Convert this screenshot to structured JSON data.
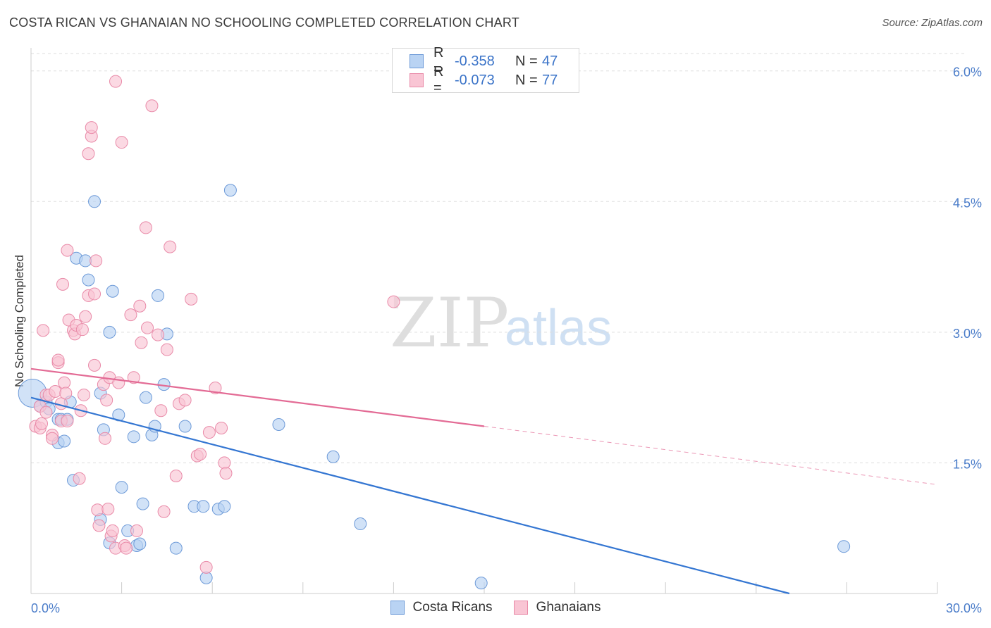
{
  "title": "COSTA RICAN VS GHANAIAN NO SCHOOLING COMPLETED CORRELATION CHART",
  "source": "Source: ZipAtlas.com",
  "watermark": {
    "zip": "ZIP",
    "atlas": "atlas"
  },
  "legend": {
    "rows": [
      {
        "r_label": "R =",
        "r_value": "-0.358",
        "n_label": "N =",
        "n_value": "47"
      },
      {
        "r_label": "R =",
        "r_value": "-0.073",
        "n_label": "N =",
        "n_value": "77"
      }
    ]
  },
  "colors": {
    "blue_fill": "#b9d3f3",
    "blue_stroke": "#6d9ad8",
    "blue_line": "#3476d2",
    "pink_fill": "#f9c5d4",
    "pink_stroke": "#e98aa8",
    "pink_line": "#e36b95",
    "axis_text": "#4a7cc9",
    "grid": "#dddddd"
  },
  "chart_data": {
    "type": "scatter",
    "title": "COSTA RICAN VS GHANAIAN NO SCHOOLING COMPLETED CORRELATION CHART",
    "xlabel": "",
    "ylabel": "No Schooling Completed",
    "xlim": [
      0,
      30
    ],
    "ylim": [
      0,
      6.2
    ],
    "x_tick_labels": [
      "0.0%",
      "30.0%"
    ],
    "y_ticks": [
      1.5,
      3.0,
      4.5,
      6.0
    ],
    "y_tick_labels": [
      "1.5%",
      "3.0%",
      "4.5%",
      "6.0%"
    ],
    "grid": true,
    "legend_position": "bottom-center",
    "series": [
      {
        "name": "Costa Ricans",
        "color": "blue",
        "trend": {
          "x0": 0,
          "y0": 2.25,
          "x1": 25.1,
          "y1": 0.0,
          "dashed_to": 25.1
        },
        "points": [
          [
            0.05,
            2.3
          ],
          [
            0.3,
            2.15
          ],
          [
            0.5,
            2.2
          ],
          [
            0.6,
            2.12
          ],
          [
            0.9,
            2.0
          ],
          [
            0.9,
            1.73
          ],
          [
            1.1,
            1.75
          ],
          [
            1.3,
            2.2
          ],
          [
            1.4,
            1.3
          ],
          [
            1.0,
            2.0
          ],
          [
            1.5,
            3.85
          ],
          [
            1.8,
            3.82
          ],
          [
            1.9,
            3.6
          ],
          [
            2.1,
            4.5
          ],
          [
            2.3,
            0.85
          ],
          [
            2.3,
            2.3
          ],
          [
            2.4,
            1.88
          ],
          [
            2.6,
            0.58
          ],
          [
            2.6,
            3.0
          ],
          [
            2.7,
            3.47
          ],
          [
            2.9,
            2.05
          ],
          [
            3.0,
            1.22
          ],
          [
            3.2,
            0.72
          ],
          [
            3.4,
            1.8
          ],
          [
            3.5,
            0.55
          ],
          [
            3.6,
            0.57
          ],
          [
            3.7,
            1.03
          ],
          [
            3.8,
            2.25
          ],
          [
            4.0,
            1.82
          ],
          [
            4.1,
            1.92
          ],
          [
            4.2,
            3.42
          ],
          [
            4.4,
            2.4
          ],
          [
            4.5,
            2.98
          ],
          [
            4.8,
            0.52
          ],
          [
            5.1,
            1.92
          ],
          [
            5.4,
            1.0
          ],
          [
            5.7,
            1.0
          ],
          [
            5.8,
            0.18
          ],
          [
            6.2,
            0.97
          ],
          [
            6.4,
            1.0
          ],
          [
            6.6,
            4.63
          ],
          [
            8.2,
            1.94
          ],
          [
            10.0,
            1.57
          ],
          [
            10.9,
            0.8
          ],
          [
            14.9,
            0.12
          ],
          [
            26.9,
            0.54
          ],
          [
            1.2,
            2.0
          ]
        ]
      },
      {
        "name": "Ghanaians",
        "color": "pink",
        "trend": {
          "x0": 0,
          "y0": 2.58,
          "x1": 15.0,
          "y1": 1.92,
          "dashed_to": 30.0,
          "dashed_y": 1.25
        },
        "points": [
          [
            0.15,
            1.92
          ],
          [
            0.3,
            1.9
          ],
          [
            0.3,
            2.15
          ],
          [
            0.35,
            1.95
          ],
          [
            0.4,
            3.02
          ],
          [
            0.5,
            2.28
          ],
          [
            0.6,
            2.28
          ],
          [
            0.7,
            1.82
          ],
          [
            0.7,
            1.78
          ],
          [
            0.8,
            2.32
          ],
          [
            0.9,
            2.65
          ],
          [
            0.9,
            2.68
          ],
          [
            1.0,
            1.98
          ],
          [
            1.0,
            2.18
          ],
          [
            1.05,
            3.55
          ],
          [
            1.1,
            2.42
          ],
          [
            1.2,
            1.98
          ],
          [
            1.2,
            3.94
          ],
          [
            1.25,
            3.14
          ],
          [
            1.4,
            3.02
          ],
          [
            1.45,
            2.98
          ],
          [
            1.5,
            3.08
          ],
          [
            1.6,
            1.32
          ],
          [
            1.65,
            2.1
          ],
          [
            1.7,
            3.03
          ],
          [
            1.75,
            2.28
          ],
          [
            1.8,
            3.18
          ],
          [
            1.9,
            3.42
          ],
          [
            1.9,
            5.05
          ],
          [
            2.0,
            5.25
          ],
          [
            2.0,
            5.35
          ],
          [
            2.1,
            3.44
          ],
          [
            2.1,
            2.62
          ],
          [
            2.15,
            3.82
          ],
          [
            2.2,
            0.96
          ],
          [
            2.25,
            0.78
          ],
          [
            2.4,
            2.4
          ],
          [
            2.45,
            1.78
          ],
          [
            2.5,
            2.22
          ],
          [
            2.55,
            0.97
          ],
          [
            2.6,
            2.48
          ],
          [
            2.65,
            0.66
          ],
          [
            2.7,
            0.72
          ],
          [
            2.8,
            5.88
          ],
          [
            2.8,
            0.52
          ],
          [
            2.9,
            2.42
          ],
          [
            3.0,
            5.18
          ],
          [
            3.1,
            0.55
          ],
          [
            3.15,
            0.52
          ],
          [
            3.3,
            3.2
          ],
          [
            3.4,
            2.48
          ],
          [
            3.5,
            0.72
          ],
          [
            3.6,
            3.3
          ],
          [
            3.65,
            2.88
          ],
          [
            3.8,
            4.2
          ],
          [
            3.85,
            3.05
          ],
          [
            4.0,
            5.6
          ],
          [
            4.2,
            2.97
          ],
          [
            4.3,
            2.1
          ],
          [
            4.4,
            0.94
          ],
          [
            4.5,
            2.8
          ],
          [
            4.6,
            3.98
          ],
          [
            4.8,
            1.35
          ],
          [
            4.9,
            2.18
          ],
          [
            5.1,
            2.22
          ],
          [
            5.3,
            3.38
          ],
          [
            5.5,
            1.58
          ],
          [
            5.6,
            1.6
          ],
          [
            5.8,
            0.3
          ],
          [
            5.9,
            1.85
          ],
          [
            6.1,
            2.36
          ],
          [
            6.3,
            1.9
          ],
          [
            6.4,
            1.5
          ],
          [
            6.45,
            1.38
          ],
          [
            12.0,
            3.35
          ],
          [
            0.5,
            2.08
          ],
          [
            1.15,
            2.3
          ]
        ]
      }
    ]
  }
}
